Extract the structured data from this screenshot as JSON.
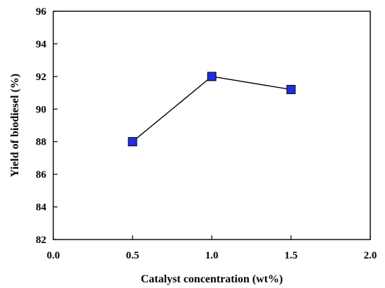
{
  "chart_data": {
    "type": "line",
    "title": "",
    "xlabel": "Catalyst concentration (wt%)",
    "ylabel": "Yield of biodiesel (%)",
    "xlim": [
      0.0,
      2.0
    ],
    "ylim": [
      82,
      96
    ],
    "xticks": [
      0.0,
      0.5,
      1.0,
      1.5,
      2.0
    ],
    "xtick_labels": [
      "0.0",
      "0.5",
      "1.0",
      "1.5",
      "2.0"
    ],
    "yticks": [
      82,
      84,
      86,
      88,
      90,
      92,
      94,
      96
    ],
    "ytick_labels": [
      "82",
      "84",
      "86",
      "88",
      "90",
      "92",
      "94",
      "96"
    ],
    "grid": false,
    "legend": "none",
    "series": [
      {
        "x": [
          0.5,
          1.0,
          1.5
        ],
        "y": [
          88.0,
          92.0,
          91.2
        ],
        "marker": "square",
        "marker_color": "#1f2fe0",
        "line_color": "#000000"
      }
    ]
  }
}
